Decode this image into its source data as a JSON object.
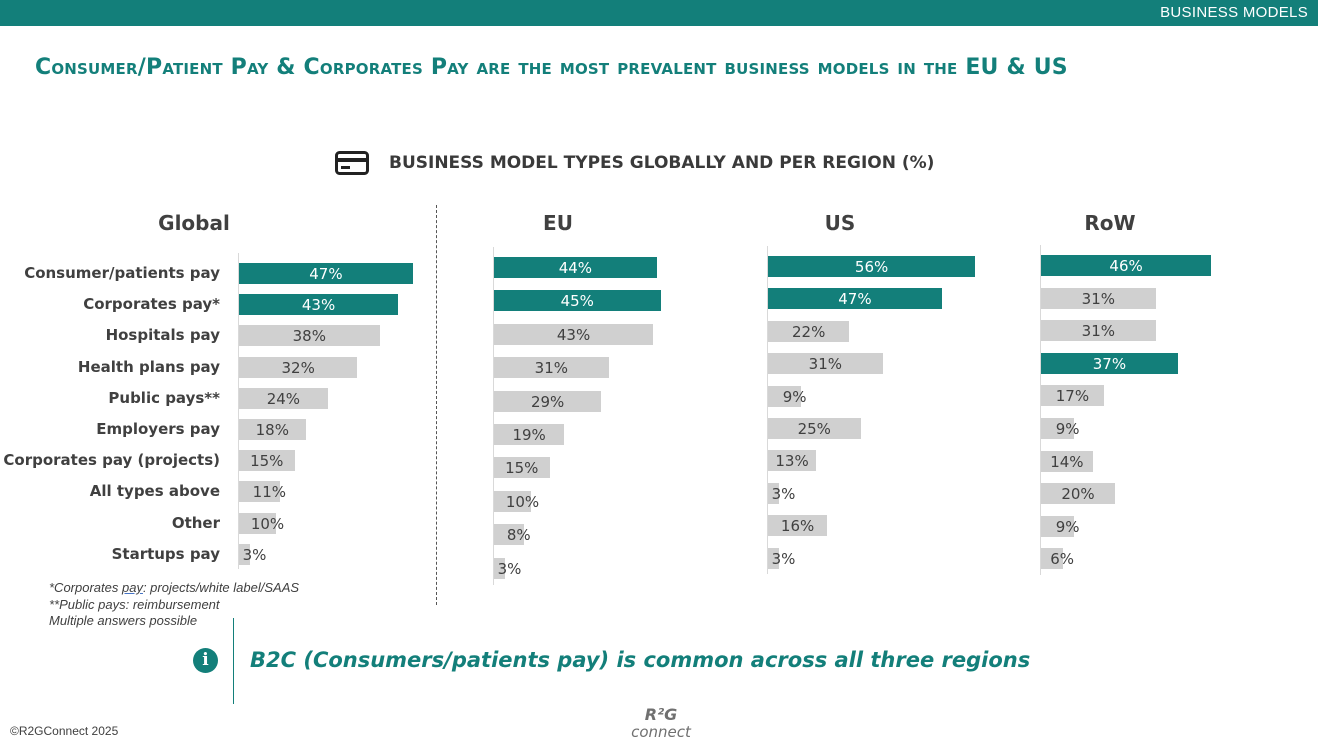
{
  "header": {
    "section": "BUSINESS MODELS"
  },
  "title": "Consumer/Patient Pay & Corporates Pay are the most prevalent business models in the EU & US",
  "chart_data": {
    "type": "bar",
    "orientation": "horizontal",
    "title": "BUSINESS MODEL TYPES GLOBALLY AND PER REGION (%)",
    "categories": [
      "Consumer/patients pay",
      "Corporates pay*",
      "Hospitals pay",
      "Health plans pay",
      "Public pays**",
      "Employers pay",
      "Corporates pay (projects)",
      "All types above",
      "Other",
      "Startups pay"
    ],
    "series": [
      {
        "name": "Global",
        "values": [
          47,
          43,
          38,
          32,
          24,
          18,
          15,
          11,
          10,
          3
        ],
        "highlight": [
          0,
          1
        ]
      },
      {
        "name": "EU",
        "values": [
          44,
          45,
          43,
          31,
          29,
          19,
          15,
          10,
          8,
          3
        ],
        "highlight": [
          0,
          1
        ]
      },
      {
        "name": "US",
        "values": [
          56,
          47,
          22,
          31,
          9,
          25,
          13,
          3,
          16,
          3
        ],
        "highlight": [
          0,
          1
        ]
      },
      {
        "name": "RoW",
        "values": [
          46,
          31,
          31,
          37,
          17,
          9,
          14,
          20,
          9,
          6
        ],
        "highlight": [
          0,
          3
        ]
      }
    ],
    "colors": {
      "highlight": "#137f7a",
      "default": "#d0d0d0"
    }
  },
  "footnotes": {
    "n1_prefix": "*Corporates ",
    "n1_word": "pay",
    "n1_suffix": ": projects/white label/SAAS",
    "n2": "**Public pays: reimbursement",
    "n3": "Multiple answers possible"
  },
  "callout": "B2C (Consumers/patients pay) is common across all three regions",
  "copyright": "©R2GConnect 2025",
  "logo": {
    "line1": "R²G",
    "line2": "connect"
  },
  "icons": {
    "subtitle_icon": "credit-card-icon",
    "callout_icon": "info-icon"
  }
}
